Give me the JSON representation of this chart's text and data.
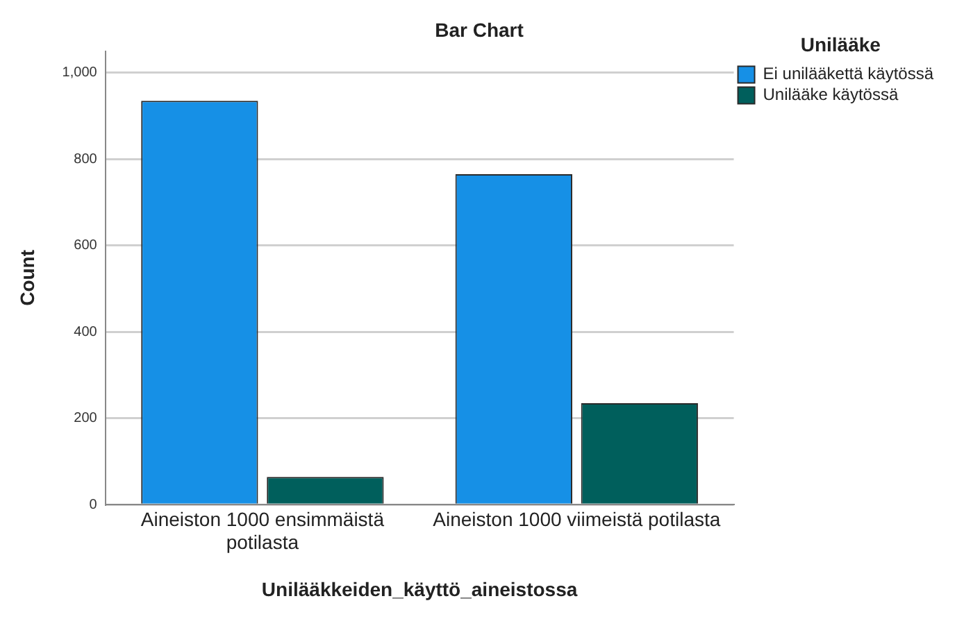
{
  "chart_data": {
    "type": "bar",
    "title": "Bar Chart",
    "xlabel": "Unilääkkeiden_käyttö_aineistossa",
    "ylabel": "Count",
    "legend_title": "Unilääke",
    "categories": [
      "Aineiston 1000 ensimmäistä potilasta",
      "Aineiston 1000 viimeistä potilasta"
    ],
    "series": [
      {
        "name": "Ei unilääkettä käytössä",
        "color": "#1690e6",
        "values": [
          935,
          765
        ]
      },
      {
        "name": "Unilääke käytössä",
        "color": "#005f5c",
        "values": [
          64,
          235
        ]
      }
    ],
    "ylim": [
      0,
      1050
    ],
    "yticks": [
      {
        "value": 0,
        "label": "0"
      },
      {
        "value": 200,
        "label": "200"
      },
      {
        "value": 400,
        "label": "400"
      },
      {
        "value": 600,
        "label": "600"
      },
      {
        "value": 800,
        "label": "800"
      },
      {
        "value": 1000,
        "label": "1,000"
      }
    ],
    "grid": "y",
    "legend": "top right"
  }
}
